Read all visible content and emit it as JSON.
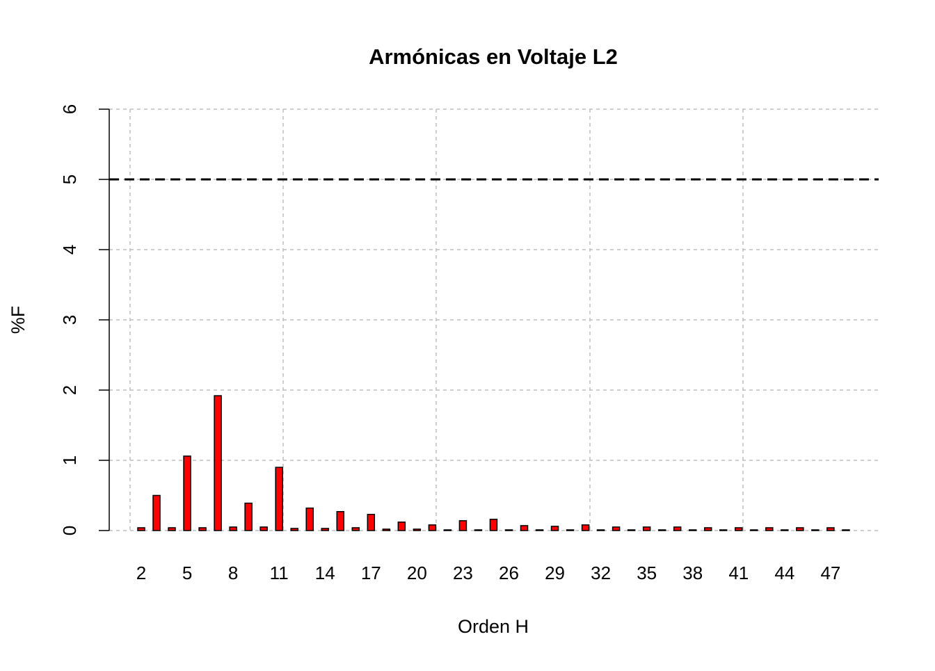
{
  "chart_data": {
    "type": "bar",
    "title": "Armónicas en Voltaje L2",
    "x_label": "Orden H",
    "y_label": "%F",
    "categories": [
      "2",
      null,
      null,
      "5",
      null,
      null,
      "8",
      null,
      null,
      "11",
      null,
      null,
      "14",
      null,
      null,
      "17",
      null,
      null,
      "20",
      null,
      null,
      "23",
      null,
      null,
      "26",
      null,
      null,
      "29",
      null,
      null,
      "32",
      null,
      null,
      "35",
      null,
      null,
      "38",
      null,
      null,
      "41",
      null,
      null,
      "44",
      null,
      null,
      "47",
      null
    ],
    "values": [
      0.04,
      0.5,
      0.04,
      1.06,
      0.04,
      1.92,
      0.05,
      0.39,
      0.05,
      0.9,
      0.03,
      0.32,
      0.03,
      0.27,
      0.04,
      0.23,
      0.02,
      0.12,
      0.02,
      0.08,
      0.01,
      0.14,
      0.01,
      0.16,
      0.01,
      0.07,
      0.01,
      0.06,
      0.01,
      0.08,
      0.01,
      0.05,
      0.01,
      0.05,
      0.01,
      0.05,
      0.01,
      0.04,
      0.01,
      0.04,
      0.01,
      0.04,
      0.01,
      0.04,
      0.01,
      0.04,
      0.01
    ],
    "color": "#ff0000",
    "ylim": [
      0,
      6
    ],
    "yticks": [
      0,
      1,
      2,
      3,
      4,
      5,
      6
    ],
    "grid": true,
    "reference_line": 5
  }
}
